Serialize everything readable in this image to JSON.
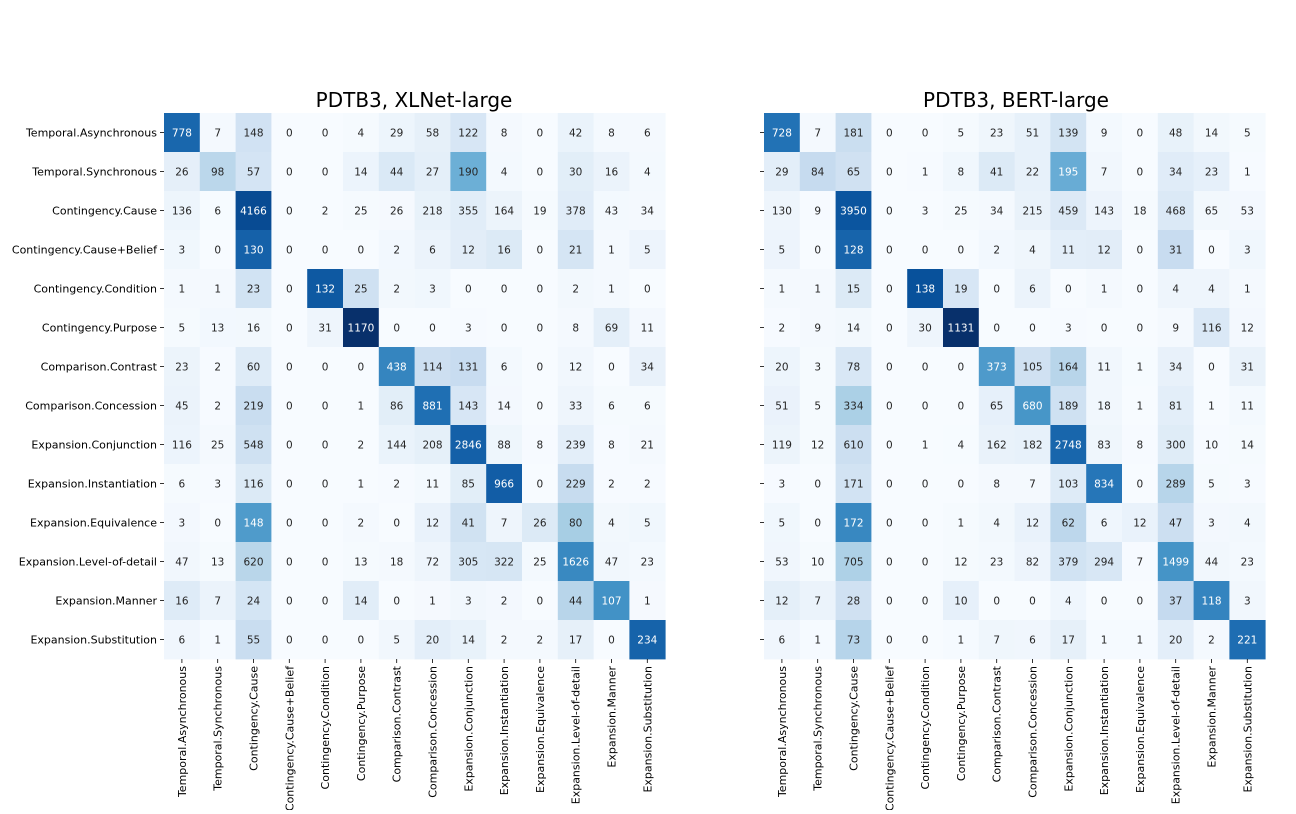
{
  "chart_data": [
    {
      "type": "heatmap",
      "title": "PDTB3, XLNet-large",
      "colormap": "Blues",
      "rows": [
        "Temporal.Asynchronous",
        "Temporal.Synchronous",
        "Contingency.Cause",
        "Contingency.Cause+Belief",
        "Contingency.Condition",
        "Contingency.Purpose",
        "Comparison.Contrast",
        "Comparison.Concession",
        "Expansion.Conjunction",
        "Expansion.Instantiation",
        "Expansion.Equivalence",
        "Expansion.Level-of-detail",
        "Expansion.Manner",
        "Expansion.Substitution"
      ],
      "columns": [
        "Temporal.Asynchronous",
        "Temporal.Synchronous",
        "Contingency.Cause",
        "Contingency.Cause+Belief",
        "Contingency.Condition",
        "Contingency.Purpose",
        "Comparison.Contrast",
        "Comparison.Concession",
        "Expansion.Conjunction",
        "Expansion.Instantiation",
        "Expansion.Equivalence",
        "Expansion.Level-of-detail",
        "Expansion.Manner",
        "Expansion.Substitution"
      ],
      "values": [
        [
          778,
          7,
          148,
          0,
          0,
          4,
          29,
          58,
          122,
          8,
          0,
          42,
          8,
          6
        ],
        [
          26,
          98,
          57,
          0,
          0,
          14,
          44,
          27,
          190,
          4,
          0,
          30,
          16,
          4
        ],
        [
          136,
          6,
          4166,
          0,
          2,
          25,
          26,
          218,
          355,
          164,
          19,
          378,
          43,
          34
        ],
        [
          3,
          0,
          130,
          0,
          0,
          0,
          2,
          6,
          12,
          16,
          0,
          21,
          1,
          5
        ],
        [
          1,
          1,
          23,
          0,
          132,
          25,
          2,
          3,
          0,
          0,
          0,
          2,
          1,
          0
        ],
        [
          5,
          13,
          16,
          0,
          31,
          1170,
          0,
          0,
          3,
          0,
          0,
          8,
          69,
          11
        ],
        [
          23,
          2,
          60,
          0,
          0,
          0,
          438,
          114,
          131,
          6,
          0,
          12,
          0,
          34
        ],
        [
          45,
          2,
          219,
          0,
          0,
          1,
          86,
          881,
          143,
          14,
          0,
          33,
          6,
          6
        ],
        [
          116,
          25,
          548,
          0,
          0,
          2,
          144,
          208,
          2846,
          88,
          8,
          239,
          8,
          21
        ],
        [
          6,
          3,
          116,
          0,
          0,
          1,
          2,
          11,
          85,
          966,
          0,
          229,
          2,
          2
        ],
        [
          3,
          0,
          148,
          0,
          0,
          2,
          0,
          12,
          41,
          7,
          26,
          80,
          4,
          5
        ],
        [
          47,
          13,
          620,
          0,
          0,
          13,
          18,
          72,
          305,
          322,
          25,
          1626,
          47,
          23
        ],
        [
          16,
          7,
          24,
          0,
          0,
          14,
          0,
          1,
          3,
          2,
          0,
          44,
          107,
          1
        ],
        [
          6,
          1,
          55,
          0,
          0,
          0,
          5,
          20,
          14,
          2,
          2,
          17,
          0,
          234
        ]
      ]
    },
    {
      "type": "heatmap",
      "title": "PDTB3, BERT-large",
      "colormap": "Blues",
      "rows": [],
      "columns": [
        "Temporal.Asynchronous",
        "Temporal.Synchronous",
        "Contingency.Cause",
        "Contingency.Cause+Belief",
        "Contingency.Condition",
        "Contingency.Purpose",
        "Comparison.Contrast",
        "Comparison.Concession",
        "Expansion.Conjunction",
        "Expansion.Instantiation",
        "Expansion.Equivalence",
        "Expansion.Level-of-detail",
        "Expansion.Manner",
        "Expansion.Substitution"
      ],
      "values": [
        [
          728,
          7,
          181,
          0,
          0,
          5,
          23,
          51,
          139,
          9,
          0,
          48,
          14,
          5
        ],
        [
          29,
          84,
          65,
          0,
          1,
          8,
          41,
          22,
          195,
          7,
          0,
          34,
          23,
          1
        ],
        [
          130,
          9,
          3950,
          0,
          3,
          25,
          34,
          215,
          459,
          143,
          18,
          468,
          65,
          53
        ],
        [
          5,
          0,
          128,
          0,
          0,
          0,
          2,
          4,
          11,
          12,
          0,
          31,
          0,
          3
        ],
        [
          1,
          1,
          15,
          0,
          138,
          19,
          0,
          6,
          0,
          1,
          0,
          4,
          4,
          1
        ],
        [
          2,
          9,
          14,
          0,
          30,
          1131,
          0,
          0,
          3,
          0,
          0,
          9,
          116,
          12
        ],
        [
          20,
          3,
          78,
          0,
          0,
          0,
          373,
          105,
          164,
          11,
          1,
          34,
          0,
          31
        ],
        [
          51,
          5,
          334,
          0,
          0,
          0,
          65,
          680,
          189,
          18,
          1,
          81,
          1,
          11
        ],
        [
          119,
          12,
          610,
          0,
          1,
          4,
          162,
          182,
          2748,
          83,
          8,
          300,
          10,
          14
        ],
        [
          3,
          0,
          171,
          0,
          0,
          0,
          8,
          7,
          103,
          834,
          0,
          289,
          5,
          3
        ],
        [
          5,
          0,
          172,
          0,
          0,
          1,
          4,
          12,
          62,
          6,
          12,
          47,
          3,
          4
        ],
        [
          53,
          10,
          705,
          0,
          0,
          12,
          23,
          82,
          379,
          294,
          7,
          1499,
          44,
          23
        ],
        [
          12,
          7,
          28,
          0,
          0,
          10,
          0,
          0,
          4,
          0,
          0,
          37,
          118,
          3
        ],
        [
          6,
          1,
          73,
          0,
          0,
          1,
          7,
          6,
          17,
          1,
          1,
          20,
          2,
          221
        ]
      ]
    }
  ]
}
